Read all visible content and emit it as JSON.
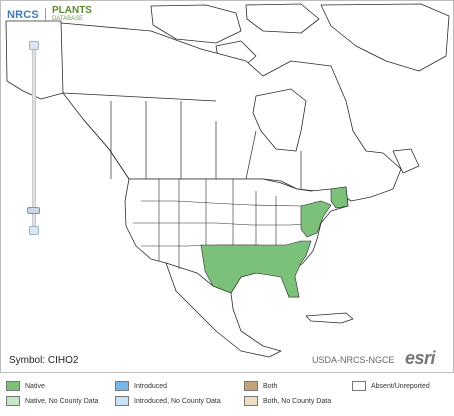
{
  "header": {
    "nrcs_logo_text": "NRCS",
    "plants_logo_text": "PLANTS",
    "plants_logo_subtext": "DATABASE"
  },
  "map": {
    "symbol_label": "Symbol: CIHO2",
    "credit_label": "USDA-NRCS-NGCE",
    "basemap_logo_text": "esri"
  },
  "colors": {
    "native": "#7cc17a",
    "native_no_county": "#c8e6c7",
    "introduced": "#77b6e6",
    "introduced_no_county": "#c7e3f6",
    "both": "#c4a27a",
    "both_no_county": "#eedfc4",
    "absent": "#ffffff",
    "boundary": "#2b2b2b"
  },
  "legend": {
    "items": [
      {
        "label": "Native",
        "color_key": "native"
      },
      {
        "label": "Native, No County Data",
        "color_key": "native_no_county"
      },
      {
        "label": "Introduced",
        "color_key": "introduced"
      },
      {
        "label": "Introduced, No County Data",
        "color_key": "introduced_no_county"
      },
      {
        "label": "Both",
        "color_key": "both"
      },
      {
        "label": "Both, No County Data",
        "color_key": "both_no_county"
      },
      {
        "label": "Absent/Unreported",
        "color_key": "absent"
      }
    ]
  }
}
